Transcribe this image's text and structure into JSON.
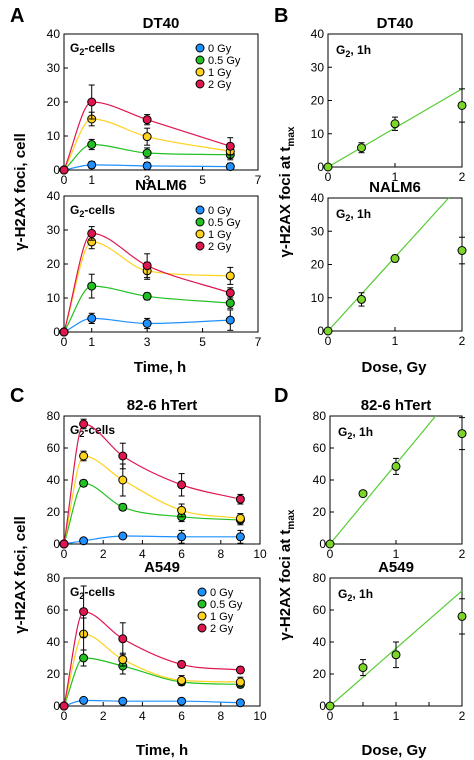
{
  "panel_letters": [
    "A",
    "B",
    "C",
    "D"
  ],
  "shared_labels": {
    "A_ylabel": "γ-H2AX foci, cell",
    "A_xlabel": "Time, h",
    "B_ylabel_main": "γ-H2AX foci at t",
    "B_ylabel_sub": "max",
    "B_xlabel": "Dose, Gy",
    "C_ylabel": "γ-H2AX foci, cell",
    "C_xlabel": "Time, h",
    "D_ylabel_main": "γ-H2AX foci at t",
    "D_ylabel_sub": "max",
    "D_xlabel": "Dose, Gy"
  },
  "colors": {
    "0 Gy": "#1e90ff",
    "0.5 Gy": "#22c022",
    "1 Gy": "#ffd21e",
    "2 Gy": "#e0174f",
    "dose_marker": "#7cd62a",
    "dose_line": "#55cc33"
  },
  "chart_data": [
    {
      "id": "A1",
      "type": "line",
      "title": "DT40",
      "annotation": {
        "main": "G",
        "sub": "2",
        "rest": "-cells"
      },
      "xlim": [
        0,
        7
      ],
      "ylim": [
        0,
        40
      ],
      "xticks": [
        0,
        1,
        3,
        5,
        7
      ],
      "yticks": [
        0,
        10,
        20,
        30,
        40
      ],
      "legend_position": "top-right",
      "series": [
        {
          "name": "0 Gy",
          "x": [
            0,
            1,
            3,
            6
          ],
          "y": [
            0,
            1.5,
            1.2,
            1.0
          ],
          "err": [
            0,
            1.0,
            1.0,
            1.0
          ]
        },
        {
          "name": "0.5 Gy",
          "x": [
            0,
            1,
            3,
            6
          ],
          "y": [
            0,
            7.5,
            5.0,
            4.5
          ],
          "err": [
            0,
            1.5,
            1.5,
            1.5
          ]
        },
        {
          "name": "1 Gy",
          "x": [
            0,
            1,
            3,
            6
          ],
          "y": [
            0,
            15.0,
            9.8,
            5.5
          ],
          "err": [
            0,
            2.0,
            2.5,
            2.0
          ]
        },
        {
          "name": "2 Gy",
          "x": [
            0,
            1,
            3,
            6
          ],
          "y": [
            0,
            20.0,
            14.8,
            7.0
          ],
          "err": [
            0,
            5.0,
            1.5,
            2.5
          ]
        }
      ]
    },
    {
      "id": "A2",
      "type": "line",
      "title": "NALM6",
      "annotation": {
        "main": "G",
        "sub": "2",
        "rest": "-cells"
      },
      "xlim": [
        0,
        7
      ],
      "ylim": [
        0,
        40
      ],
      "xticks": [
        0,
        1,
        3,
        5,
        7
      ],
      "yticks": [
        0,
        10,
        20,
        30,
        40
      ],
      "legend_position": "top-right",
      "series": [
        {
          "name": "0 Gy",
          "x": [
            0,
            1,
            3,
            6
          ],
          "y": [
            0,
            4.0,
            2.5,
            3.5
          ],
          "err": [
            0,
            1.5,
            1.5,
            3.0
          ]
        },
        {
          "name": "0.5 Gy",
          "x": [
            0,
            1,
            3,
            6
          ],
          "y": [
            0,
            13.5,
            10.5,
            8.5
          ],
          "err": [
            0,
            3.5,
            1.0,
            1.5
          ]
        },
        {
          "name": "1 Gy",
          "x": [
            0,
            1,
            3,
            6
          ],
          "y": [
            0,
            26.5,
            18.0,
            16.5
          ],
          "err": [
            0,
            2.0,
            2.5,
            2.5
          ]
        },
        {
          "name": "2 Gy",
          "x": [
            0,
            1,
            3,
            6
          ],
          "y": [
            0,
            29.0,
            19.5,
            11.5
          ],
          "err": [
            0,
            2.0,
            3.5,
            1.5
          ]
        }
      ]
    },
    {
      "id": "B1",
      "type": "scatter",
      "title": "DT40",
      "annotation": {
        "main": "G",
        "sub": "2",
        "rest": ", 1h"
      },
      "xlim": [
        0,
        2
      ],
      "ylim": [
        0,
        40
      ],
      "xticks": [
        0,
        1,
        2
      ],
      "yticks": [
        0,
        10,
        20,
        30,
        40
      ],
      "points": {
        "x": [
          0,
          0.5,
          1,
          2
        ],
        "y": [
          0,
          5.8,
          13.0,
          18.5
        ],
        "err": [
          0,
          1.5,
          2.0,
          5.0
        ]
      },
      "fit_line": {
        "x": [
          0,
          2
        ],
        "y": [
          0,
          23.5
        ]
      }
    },
    {
      "id": "B2",
      "type": "scatter",
      "title": "NALM6",
      "annotation": {
        "main": "G",
        "sub": "2",
        "rest": ", 1h"
      },
      "xlim": [
        0,
        2
      ],
      "ylim": [
        0,
        40
      ],
      "xticks": [
        0,
        1,
        2
      ],
      "yticks": [
        0,
        10,
        20,
        30,
        40
      ],
      "points": {
        "x": [
          0,
          0.5,
          1,
          2
        ],
        "y": [
          0,
          9.5,
          21.8,
          24.2
        ],
        "err": [
          0,
          2.0,
          1.0,
          4.0
        ]
      },
      "fit_line": {
        "x": [
          0,
          1.8
        ],
        "y": [
          0,
          40
        ]
      }
    },
    {
      "id": "C1",
      "type": "line",
      "title": "82-6 hTert",
      "annotation": {
        "main": "G",
        "sub": "2",
        "rest": "-cells"
      },
      "xlim": [
        0,
        10
      ],
      "ylim": [
        0,
        80
      ],
      "xticks": [
        0,
        2,
        4,
        6,
        8,
        10
      ],
      "yticks": [
        0,
        20,
        40,
        60,
        80
      ],
      "legend_position": "none",
      "series": [
        {
          "name": "0 Gy",
          "x": [
            0,
            1,
            3,
            6,
            9
          ],
          "y": [
            0,
            2.0,
            5.0,
            4.5,
            4.5
          ],
          "err": [
            0,
            1.0,
            1.0,
            4.0,
            4.0
          ]
        },
        {
          "name": "0.5 Gy",
          "x": [
            0,
            1,
            3,
            6,
            9
          ],
          "y": [
            0,
            38.0,
            23.0,
            17.0,
            15.0
          ],
          "err": [
            0,
            2.0,
            2.0,
            3.0,
            3.0
          ]
        },
        {
          "name": "1 Gy",
          "x": [
            0,
            1,
            3,
            6,
            9
          ],
          "y": [
            0,
            55.0,
            40.0,
            21.0,
            16.0
          ],
          "err": [
            0,
            3.0,
            10.0,
            4.0,
            3.0
          ]
        },
        {
          "name": "2 Gy",
          "x": [
            0,
            1,
            3,
            6,
            9
          ],
          "y": [
            0,
            75.0,
            55.0,
            37.0,
            28.0
          ],
          "err": [
            0,
            3.0,
            8.0,
            7.0,
            3.0
          ]
        }
      ]
    },
    {
      "id": "C2",
      "type": "line",
      "title": "A549",
      "annotation": {
        "main": "G",
        "sub": "2",
        "rest": "-cells"
      },
      "xlim": [
        0,
        10
      ],
      "ylim": [
        0,
        80
      ],
      "xticks": [
        0,
        2,
        4,
        6,
        8,
        10
      ],
      "yticks": [
        0,
        20,
        40,
        60,
        80
      ],
      "legend_position": "top-right",
      "series": [
        {
          "name": "0 Gy",
          "x": [
            0,
            1,
            3,
            6,
            9
          ],
          "y": [
            0,
            3.5,
            3.0,
            3.0,
            2.0
          ],
          "err": [
            0,
            1.0,
            1.0,
            1.0,
            1.0
          ]
        },
        {
          "name": "0.5 Gy",
          "x": [
            0,
            1,
            3,
            6,
            9
          ],
          "y": [
            0,
            30.0,
            25.0,
            15.0,
            13.5
          ],
          "err": [
            0,
            5.0,
            5.0,
            2.0,
            2.0
          ]
        },
        {
          "name": "1 Gy",
          "x": [
            0,
            1,
            3,
            6,
            9
          ],
          "y": [
            0,
            45.0,
            29.0,
            16.0,
            15.0
          ],
          "err": [
            0,
            10.0,
            4.0,
            3.0,
            3.0
          ]
        },
        {
          "name": "2 Gy",
          "x": [
            0,
            1,
            3,
            6,
            9
          ],
          "y": [
            0,
            59.0,
            42.0,
            26.0,
            22.5
          ],
          "err": [
            0,
            16.0,
            10.0,
            2.0,
            2.0
          ]
        }
      ]
    },
    {
      "id": "D1",
      "type": "scatter",
      "title": "82-6 hTert",
      "annotation": {
        "main": "G",
        "sub": "2",
        "rest": ", 1h"
      },
      "xlim": [
        0,
        2
      ],
      "ylim": [
        0,
        80
      ],
      "xticks": [
        0,
        1,
        2
      ],
      "yticks": [
        0,
        20,
        40,
        60,
        80
      ],
      "points": {
        "x": [
          0,
          0.5,
          1,
          2
        ],
        "y": [
          0,
          31.5,
          48.5,
          69.0
        ],
        "err": [
          0,
          1.5,
          5.0,
          10.0
        ]
      },
      "fit_line": {
        "x": [
          0,
          1.6
        ],
        "y": [
          0,
          80
        ]
      }
    },
    {
      "id": "D2",
      "type": "scatter",
      "title": "A549",
      "annotation": {
        "main": "G",
        "sub": "2",
        "rest": ", 1h"
      },
      "xlim": [
        0,
        2
      ],
      "ylim": [
        0,
        80
      ],
      "xticks": [
        0,
        0.5,
        1,
        1.5,
        2
      ],
      "ytick_labels_shown": [
        0,
        20,
        40,
        60,
        80
      ],
      "xtick_labels": [
        "0",
        "",
        "1",
        "",
        "2"
      ],
      "yticks": [
        0,
        20,
        40,
        60,
        80
      ],
      "points": {
        "x": [
          0,
          0.5,
          1,
          2
        ],
        "y": [
          0,
          24.0,
          32.0,
          56.0
        ],
        "err": [
          0,
          5.0,
          8.0,
          11.0
        ]
      },
      "fit_line": {
        "x": [
          0,
          2
        ],
        "y": [
          0,
          72
        ]
      }
    }
  ]
}
